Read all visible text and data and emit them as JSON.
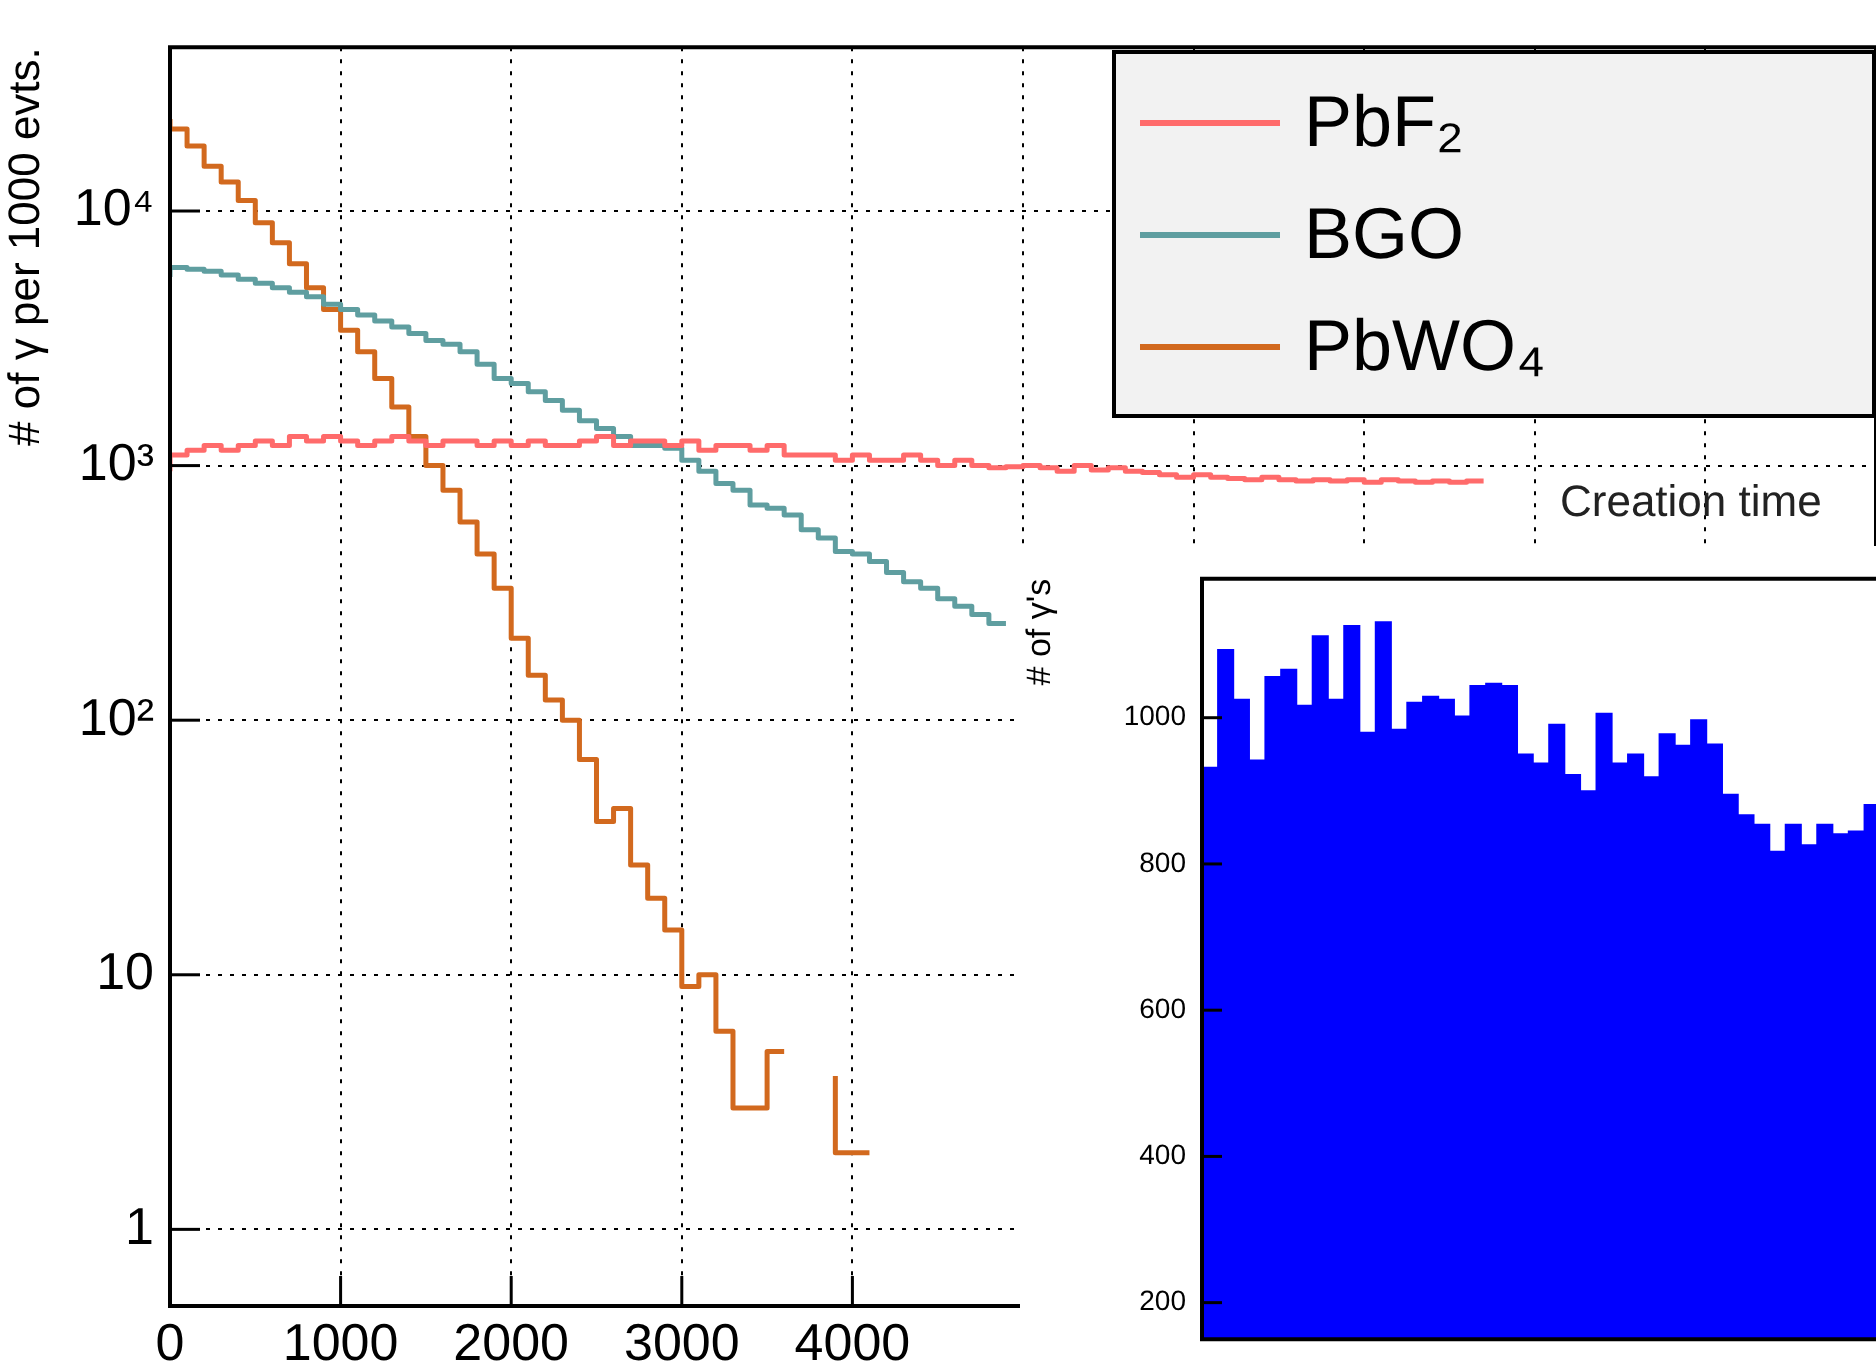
{
  "chart_data": [
    {
      "type": "step",
      "ylabel": "# of γ per 1000 evts.",
      "log": "y",
      "grid": true,
      "legend": "top right",
      "xlim": [
        0,
        10000
      ],
      "xticks": [
        0,
        1000,
        2000,
        3000,
        4000,
        {
          "value": 5000,
          "label": null
        },
        {
          "value": 6000,
          "label": null
        },
        {
          "value": 7000,
          "label": null
        },
        {
          "value": 8000,
          "label": null
        },
        {
          "value": 9000,
          "label": null
        }
      ],
      "ylim": [
        0.5,
        44000
      ],
      "yticks": [
        1,
        10,
        {
          "value": 100,
          "label": "10²"
        },
        {
          "value": 1000,
          "label": "10³"
        },
        {
          "value": 10000,
          "label": "10⁴"
        }
      ],
      "series": [
        {
          "name": "PbF₂",
          "color": "#ff6b6b",
          "x": [
            0,
            100,
            200,
            300,
            400,
            500,
            600,
            700,
            800,
            900,
            1000,
            1100,
            1200,
            1300,
            1400,
            1500,
            1600,
            1700,
            1800,
            1900,
            2000,
            2100,
            2200,
            2300,
            2400,
            2500,
            2600,
            2700,
            2800,
            2900,
            3000,
            3100,
            3200,
            3300,
            3400,
            3500,
            3600,
            3700,
            3800,
            3900,
            4000,
            4100,
            4200,
            4300,
            4400,
            4500,
            4600,
            4700,
            4800,
            4900,
            5000,
            5100,
            5200,
            5300,
            5400,
            5500,
            5600,
            5700,
            5800,
            5900,
            6000,
            6100,
            6200,
            6300,
            6400,
            6500,
            6600,
            6700,
            6800,
            6900,
            7000,
            7100,
            7200,
            7300,
            7400,
            7500,
            7600,
            7700
          ],
          "values": [
            950,
            1100,
            1150,
            1200,
            1150,
            1200,
            1250,
            1200,
            1300,
            1250,
            1300,
            1250,
            1200,
            1250,
            1300,
            1250,
            1200,
            1250,
            1250,
            1200,
            1250,
            1200,
            1250,
            1200,
            1200,
            1250,
            1300,
            1200,
            1250,
            1250,
            1200,
            1250,
            1150,
            1200,
            1200,
            1150,
            1200,
            1100,
            1100,
            1100,
            1050,
            1100,
            1050,
            1050,
            1100,
            1050,
            1000,
            1050,
            1000,
            980,
            990,
            1000,
            980,
            950,
            1000,
            960,
            980,
            950,
            940,
            920,
            900,
            920,
            900,
            890,
            880,
            900,
            880,
            870,
            880,
            870,
            880,
            860,
            880,
            870,
            860,
            870,
            860,
            870
          ]
        },
        {
          "name": "BGO",
          "color": "#5f9ea0",
          "x": [
            0,
            100,
            200,
            300,
            400,
            500,
            600,
            700,
            800,
            900,
            1000,
            1100,
            1200,
            1300,
            1400,
            1500,
            1600,
            1700,
            1800,
            1900,
            2000,
            2100,
            2200,
            2300,
            2400,
            2500,
            2600,
            2700,
            2800,
            2900,
            3000,
            3100,
            3200,
            3300,
            3400,
            3500,
            3600,
            3700,
            3800,
            3900,
            4000,
            4100,
            4200,
            4300,
            4400,
            4500,
            4600,
            4700,
            4800,
            4900
          ],
          "values": [
            5500,
            6000,
            5900,
            5800,
            5600,
            5400,
            5200,
            5000,
            4800,
            4600,
            4300,
            4100,
            3900,
            3700,
            3500,
            3300,
            3100,
            3000,
            2800,
            2500,
            2200,
            2100,
            1950,
            1800,
            1650,
            1500,
            1400,
            1300,
            1200,
            1200,
            1170,
            1050,
            950,
            850,
            800,
            700,
            680,
            640,
            560,
            520,
            460,
            450,
            420,
            380,
            350,
            330,
            300,
            280,
            260,
            240
          ]
        },
        {
          "name": "PbWO₄",
          "color": "#d2691e",
          "x": [
            0,
            100,
            200,
            300,
            400,
            500,
            600,
            700,
            800,
            900,
            1000,
            1100,
            1200,
            1300,
            1400,
            1500,
            1600,
            1700,
            1800,
            1900,
            2000,
            2100,
            2200,
            2300,
            2400,
            2500,
            2600,
            2700,
            2800,
            2900,
            3000,
            3100,
            3200,
            3300,
            3400,
            3500,
            3600,
            3700,
            3800,
            3900,
            4000,
            4100
          ],
          "values": [
            23000,
            21000,
            18000,
            15000,
            13000,
            11000,
            9000,
            7500,
            6200,
            5000,
            4100,
            3400,
            2800,
            2200,
            1700,
            1300,
            1000,
            800,
            600,
            450,
            330,
            210,
            150,
            120,
            100,
            70,
            40,
            45,
            27,
            20,
            15,
            9,
            10,
            6,
            3,
            3,
            5,
            null,
            null,
            4,
            2,
            2
          ]
        }
      ]
    },
    {
      "type": "bar",
      "title": "Creation time",
      "ylabel": "# of γ's",
      "tick_labels": "y",
      "color": "#0000ff",
      "ylim": [
        150,
        1190
      ],
      "yticks": [
        200,
        400,
        600,
        800,
        1000
      ],
      "categories": [
        null,
        null,
        null,
        null,
        null,
        null,
        null,
        null,
        null,
        null,
        null,
        null,
        null,
        null,
        null,
        null,
        null,
        null,
        null,
        null,
        null,
        null,
        null,
        null,
        null,
        null,
        null,
        null,
        null,
        null,
        null,
        null,
        null,
        null,
        null,
        null,
        null,
        null,
        null,
        null,
        null,
        null,
        null
      ],
      "values": [
        932,
        1093,
        1025,
        942,
        1056,
        1066,
        1017,
        1112,
        1025,
        1126,
        980,
        1131,
        984,
        1021,
        1029,
        1025,
        1002,
        1044,
        1047,
        1044,
        950,
        938,
        991,
        922,
        900,
        1006,
        938,
        950,
        919,
        978,
        962,
        997,
        964,
        895,
        867,
        854,
        817,
        854,
        826,
        854,
        841,
        845,
        881
      ]
    }
  ]
}
